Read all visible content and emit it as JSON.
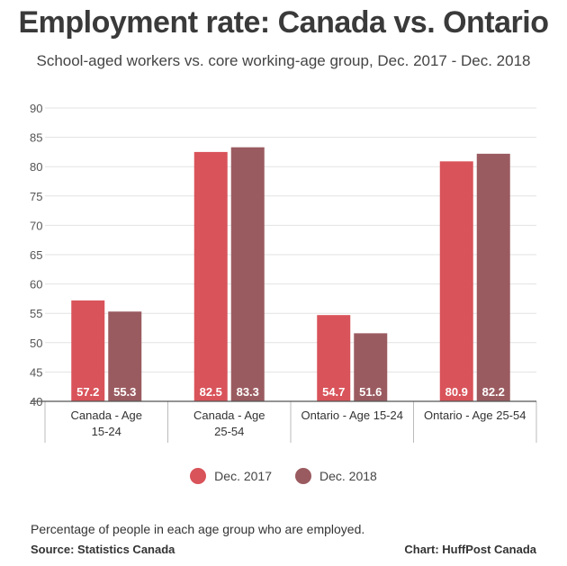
{
  "header": {
    "title": "Employment rate: Canada vs. Ontario",
    "subtitle": "School-aged workers vs. core working-age group, Dec. 2017 - Dec. 2018"
  },
  "footer": {
    "note": "Percentage of people in each age group who are employed.",
    "source": "Source: Statistics Canada",
    "credit": "Chart: HuffPost Canada"
  },
  "chart_data": {
    "type": "bar",
    "categories": [
      [
        "Canada - Age",
        "15-24"
      ],
      [
        "Canada - Age",
        "25-54"
      ],
      [
        "Ontario - Age 15-24"
      ],
      [
        "Ontario - Age 25-54"
      ]
    ],
    "series": [
      {
        "name": "Dec. 2017",
        "values": [
          57.2,
          82.5,
          54.7,
          80.9
        ],
        "color": "#d9535a"
      },
      {
        "name": "Dec. 2018",
        "values": [
          55.3,
          83.3,
          51.6,
          82.2
        ],
        "color": "#9a5b60"
      }
    ],
    "y_ticks": [
      40,
      45,
      50,
      55,
      60,
      65,
      70,
      75,
      80,
      85,
      90
    ],
    "ylim": [
      40,
      90
    ],
    "grid": true,
    "legend_position": "bottom",
    "data_labels": true
  }
}
